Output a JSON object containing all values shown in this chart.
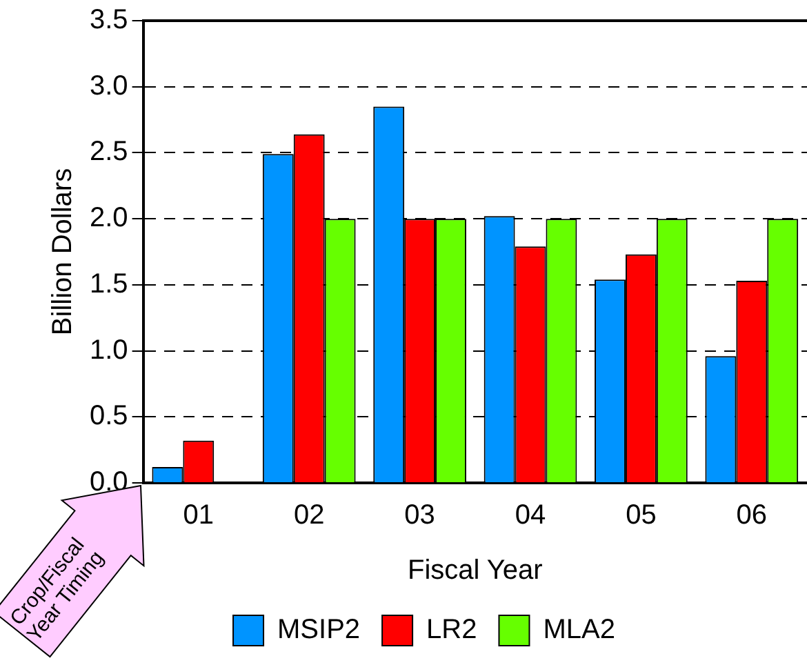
{
  "chart_data": {
    "type": "bar",
    "xlabel": "Fiscal Year",
    "ylabel": "Billion Dollars",
    "categories": [
      "01",
      "02",
      "03",
      "04",
      "05",
      "06"
    ],
    "series": [
      {
        "name": "MSIP2",
        "color": "#0094ff",
        "values": [
          0.12,
          2.49,
          2.85,
          2.02,
          1.54,
          0.96
        ]
      },
      {
        "name": "LR2",
        "color": "#ff0000",
        "values": [
          0.32,
          2.64,
          2.0,
          1.79,
          1.73,
          1.53
        ]
      },
      {
        "name": "MLA2",
        "color": "#66ff00",
        "values": [
          0,
          2.0,
          2.0,
          2.0,
          2.0,
          2.0
        ]
      }
    ],
    "ylim": [
      0,
      3.5
    ],
    "yticks": [
      {
        "value": 0,
        "label": "0.0"
      },
      {
        "value": 0.5,
        "label": "0.5"
      },
      {
        "value": 1,
        "label": "1.0"
      },
      {
        "value": 1.5,
        "label": "1.5"
      },
      {
        "value": 2,
        "label": "2.0"
      },
      {
        "value": 2.5,
        "label": "2.5"
      },
      {
        "value": 3,
        "label": "3.0"
      },
      {
        "value": 3.5,
        "label": "3.5"
      }
    ],
    "grid": "y",
    "legend": "bottom",
    "annotations": [
      "Crop/Fiscal Year Timing"
    ]
  }
}
